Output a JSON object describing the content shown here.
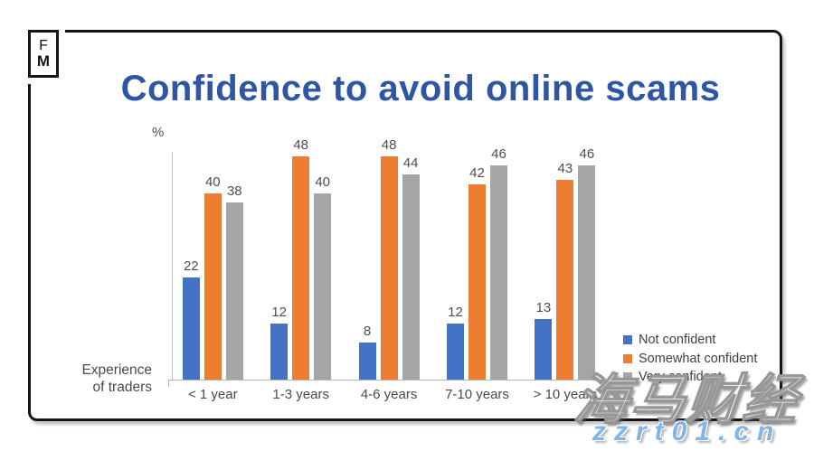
{
  "logo": {
    "letter_top": "F",
    "letter_bottom": "M"
  },
  "header": {
    "title": "Confidence to avoid online scams"
  },
  "chart_data": {
    "type": "bar",
    "title": "Confidence to avoid online scams",
    "unit_label": "%",
    "axis_label_line1": "Experience",
    "axis_label_line2": "of traders",
    "categories": [
      "< 1 year",
      "1-3 years",
      "4-6 years",
      "7-10 years",
      "> 10 years"
    ],
    "series": [
      {
        "name": "Not confident",
        "color": "#4472C4",
        "values": [
          22,
          12,
          8,
          12,
          13
        ]
      },
      {
        "name": "Somewhat confident",
        "color": "#ED7D31",
        "values": [
          40,
          48,
          48,
          42,
          43
        ]
      },
      {
        "name": "Very confident",
        "color": "#A5A5A5",
        "values": [
          38,
          40,
          44,
          46,
          46
        ]
      }
    ],
    "ylim": [
      0,
      50
    ],
    "grid": false,
    "legend_position": "bottom-right",
    "bar_value_labels": true
  },
  "watermark": {
    "brand_cn": "海马财经",
    "site_url": "zzrt01.cn"
  },
  "colors": {
    "title_blue": "#2E56A4",
    "series_blue": "#4472C4",
    "series_orange": "#ED7D31",
    "series_gray": "#A5A5A5",
    "axis_line": "#BFBFBF",
    "card_border": "#141414",
    "watermark_blue": "#7FB5E8"
  }
}
